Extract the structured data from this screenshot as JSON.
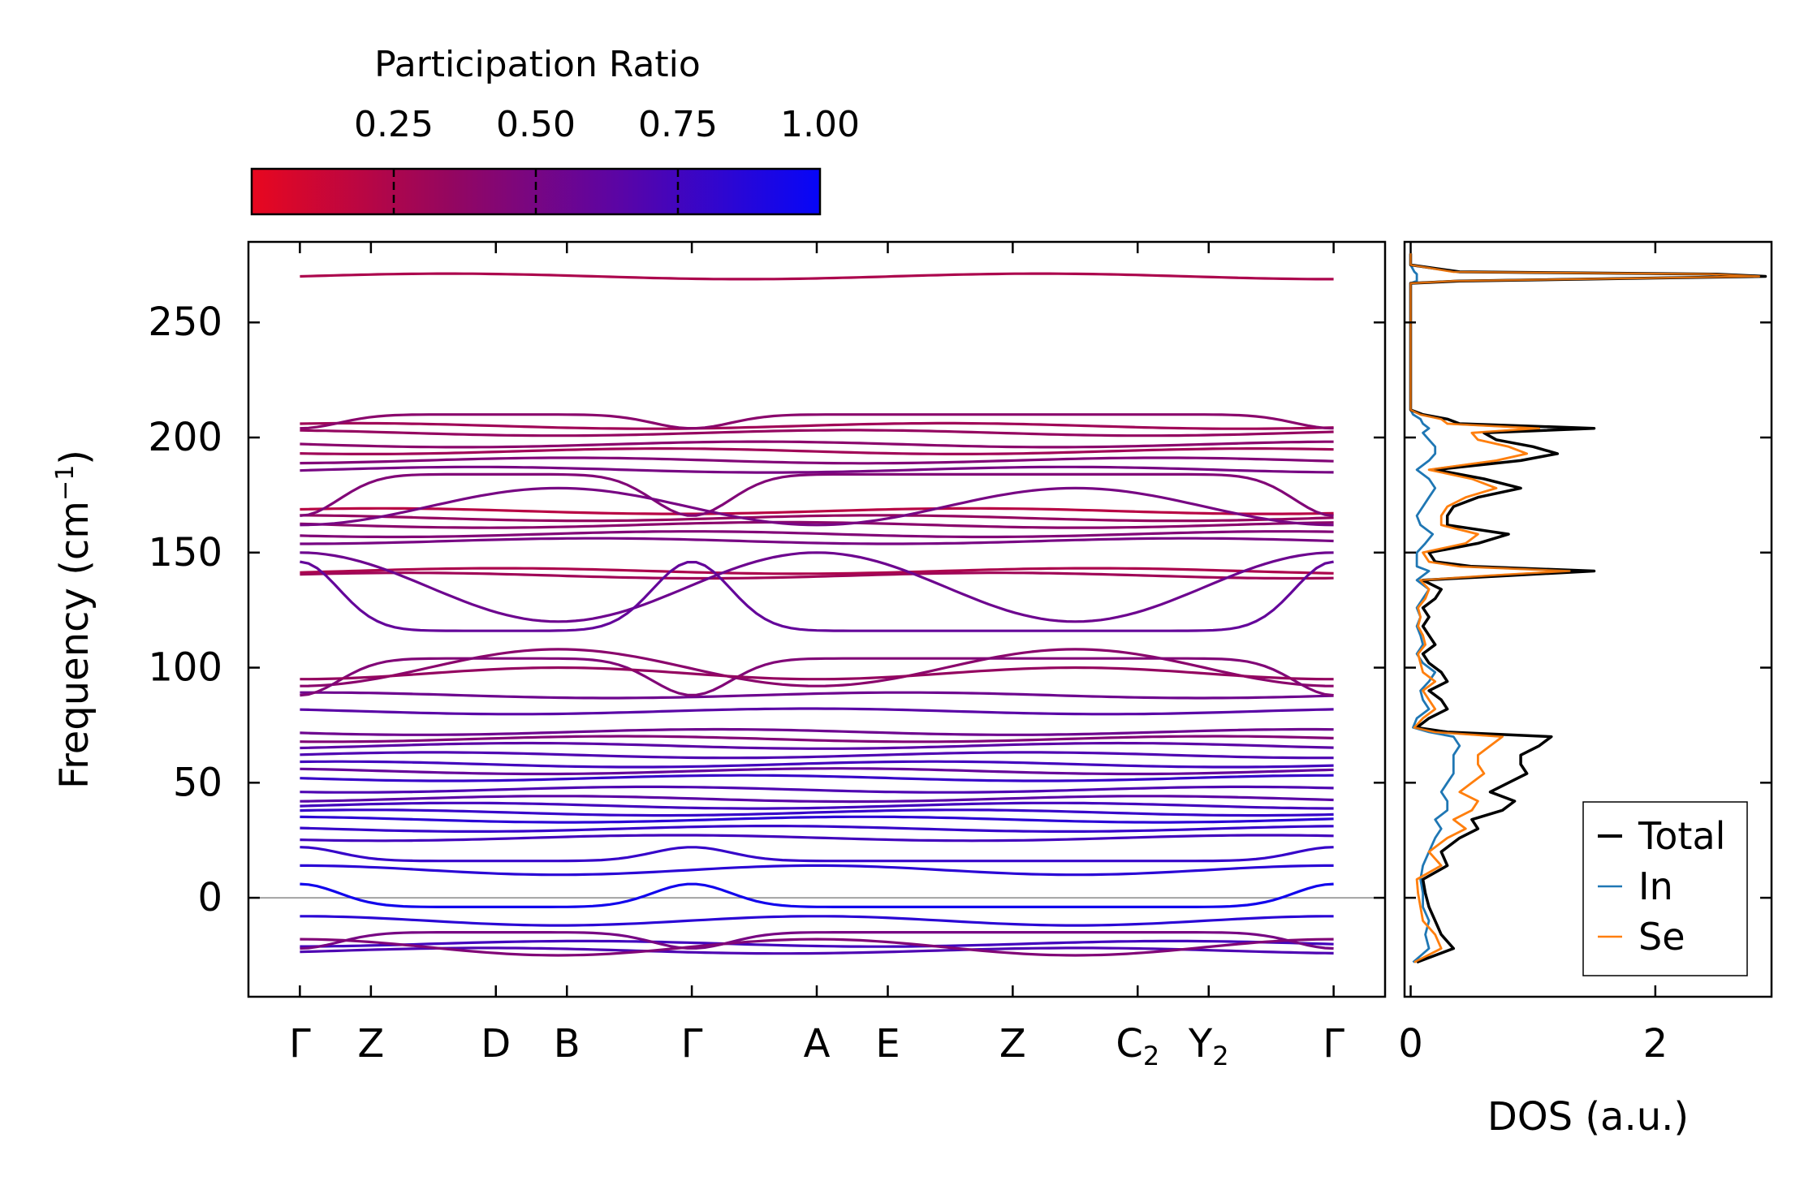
{
  "chart_data": [
    {
      "type": "line",
      "kind": "phonon-band-structure",
      "ylabel": "Frequency (cm",
      "ylabel_sup": "−1",
      "ylabel_close": ")",
      "ylim": [
        -43,
        285
      ],
      "yticks": [
        "250",
        "200",
        "150",
        "100",
        "50",
        "0"
      ],
      "ytick_values": [
        250,
        200,
        150,
        100,
        50,
        0
      ],
      "xticks": [
        {
          "label": "Γ",
          "x": 0
        },
        {
          "label": "Z",
          "x": 0.58
        },
        {
          "label": "D",
          "x": 1.6
        },
        {
          "label": "B",
          "x": 2.18
        },
        {
          "label": "Γ",
          "x": 3.2
        },
        {
          "label": "A",
          "x": 4.22
        },
        {
          "label": "E",
          "x": 4.8
        },
        {
          "label": "Z",
          "x": 5.82
        },
        {
          "label": "C",
          "sub": "2",
          "x": 6.84
        },
        {
          "label": "Y",
          "sub": "2",
          "x": 7.42
        },
        {
          "label": "Γ",
          "x": 8.44
        }
      ],
      "xlim": [
        -0.42,
        8.86
      ],
      "colorbar": {
        "title": "Participation Ratio",
        "ticks": [
          "0.25",
          "0.50",
          "0.75",
          "1.00"
        ],
        "tick_values": [
          0.25,
          0.5,
          0.75,
          1.0
        ],
        "range": [
          0.0,
          1.0
        ],
        "colors": [
          "#e8071f",
          "#940660",
          "#5a05a6",
          "#0606f8"
        ]
      },
      "flat_bands": [
        {
          "y": 270,
          "pr": 0.25
        },
        {
          "y": 205,
          "pr": 0.3
        },
        {
          "y": 202,
          "pr": 0.35
        },
        {
          "y": 197,
          "pr": 0.4
        },
        {
          "y": 194,
          "pr": 0.3
        },
        {
          "y": 190,
          "pr": 0.45
        },
        {
          "y": 186,
          "pr": 0.5
        },
        {
          "y": 168,
          "pr": 0.2
        },
        {
          "y": 165,
          "pr": 0.35
        },
        {
          "y": 162,
          "pr": 0.4
        },
        {
          "y": 158,
          "pr": 0.45
        },
        {
          "y": 155,
          "pr": 0.5
        },
        {
          "y": 142,
          "pr": 0.25
        },
        {
          "y": 140,
          "pr": 0.3
        },
        {
          "y": 88,
          "pr": 0.55
        },
        {
          "y": 81,
          "pr": 0.65
        },
        {
          "y": 72,
          "pr": 0.55
        },
        {
          "y": 69,
          "pr": 0.45
        },
        {
          "y": 66,
          "pr": 0.65
        },
        {
          "y": 62,
          "pr": 0.7
        },
        {
          "y": 58,
          "pr": 0.75
        },
        {
          "y": 55,
          "pr": 0.6
        },
        {
          "y": 52,
          "pr": 0.8
        },
        {
          "y": 47,
          "pr": 0.7
        },
        {
          "y": 43,
          "pr": 0.65
        },
        {
          "y": 40,
          "pr": 0.75
        },
        {
          "y": 37,
          "pr": 0.8
        },
        {
          "y": 34,
          "pr": 0.85
        },
        {
          "y": 30,
          "pr": 0.8
        },
        {
          "y": 26,
          "pr": 0.75
        },
        {
          "y": -20,
          "pr": 0.75
        },
        {
          "y": -23,
          "pr": 0.7
        }
      ],
      "modulated_bands": [
        {
          "a": 184,
          "b": 166,
          "pr": 0.45
        },
        {
          "a": 178,
          "b": 162,
          "pr": 0.5
        },
        {
          "a": 210,
          "b": 204,
          "pr": 0.4
        },
        {
          "a": 120,
          "b": 150,
          "pr": 0.55
        },
        {
          "a": 116,
          "b": 146,
          "pr": 0.6
        },
        {
          "a": 108,
          "b": 92,
          "pr": 0.4
        },
        {
          "a": 104,
          "b": 88,
          "pr": 0.45
        },
        {
          "a": 100,
          "b": 95,
          "pr": 0.35
        },
        {
          "a": 16,
          "b": 22,
          "pr": 0.8
        },
        {
          "a": 10,
          "b": 14,
          "pr": 0.85
        },
        {
          "a": -4,
          "b": 6,
          "pr": 0.95
        },
        {
          "a": -12,
          "b": -8,
          "pr": 0.85
        },
        {
          "a": -15,
          "b": -22,
          "pr": 0.5
        },
        {
          "a": -25,
          "b": -18,
          "pr": 0.45
        }
      ],
      "zero_line": 0
    },
    {
      "type": "line",
      "kind": "density-of-states",
      "xlabel": "DOS (a.u.)",
      "xlim": [
        -0.05,
        2.95
      ],
      "xticks": [
        "0",
        "2"
      ],
      "xtick_values": [
        0,
        2
      ],
      "ylim": [
        -43,
        285
      ],
      "legend_position": "bottom-right",
      "series": [
        {
          "name": "Total",
          "color": "#000000"
        },
        {
          "name": "In",
          "color": "#1f77b4"
        },
        {
          "name": "Se",
          "color": "#ff7f0e"
        }
      ],
      "freq": [
        -28,
        -22,
        -16,
        -10,
        -4,
        2,
        8,
        14,
        20,
        26,
        30,
        34,
        38,
        42,
        46,
        50,
        54,
        58,
        62,
        66,
        70,
        72,
        74,
        78,
        82,
        86,
        90,
        94,
        98,
        102,
        106,
        110,
        114,
        118,
        122,
        126,
        130,
        134,
        138,
        140,
        142,
        144,
        146,
        150,
        154,
        158,
        162,
        166,
        170,
        174,
        178,
        182,
        186,
        190,
        193,
        196,
        199,
        202,
        204,
        206,
        208,
        210,
        212,
        220,
        240,
        260,
        267,
        268,
        270,
        271,
        272,
        275,
        280
      ],
      "total": [
        0.05,
        0.35,
        0.25,
        0.2,
        0.15,
        0.12,
        0.1,
        0.3,
        0.25,
        0.4,
        0.55,
        0.5,
        0.75,
        0.85,
        0.65,
        0.8,
        0.95,
        0.9,
        0.9,
        1.05,
        1.15,
        0.3,
        0.05,
        0.15,
        0.3,
        0.25,
        0.15,
        0.3,
        0.25,
        0.15,
        0.1,
        0.2,
        0.15,
        0.1,
        0.15,
        0.1,
        0.2,
        0.25,
        0.1,
        0.8,
        1.5,
        0.5,
        0.2,
        0.15,
        0.55,
        0.8,
        0.3,
        0.3,
        0.35,
        0.55,
        0.9,
        0.6,
        0.2,
        0.9,
        1.2,
        1.0,
        0.7,
        0.6,
        1.5,
        0.4,
        0.3,
        0.1,
        0.0,
        0.0,
        0.0,
        0.0,
        0.0,
        0.4,
        2.9,
        2.5,
        0.4,
        0.0,
        0.0
      ],
      "In": [
        0.02,
        0.15,
        0.12,
        0.15,
        0.1,
        0.1,
        0.08,
        0.1,
        0.15,
        0.2,
        0.25,
        0.2,
        0.3,
        0.3,
        0.25,
        0.3,
        0.35,
        0.35,
        0.35,
        0.4,
        0.35,
        0.15,
        0.02,
        0.05,
        0.15,
        0.1,
        0.08,
        0.15,
        0.2,
        0.1,
        0.05,
        0.1,
        0.08,
        0.05,
        0.08,
        0.05,
        0.1,
        0.15,
        0.05,
        0.1,
        0.15,
        0.05,
        0.05,
        0.05,
        0.12,
        0.18,
        0.08,
        0.05,
        0.1,
        0.15,
        0.2,
        0.15,
        0.05,
        0.15,
        0.2,
        0.2,
        0.15,
        0.1,
        0.15,
        0.1,
        0.08,
        0.02,
        0.0,
        0.0,
        0.0,
        0.0,
        0.0,
        0.05,
        0.05,
        0.05,
        0.03,
        0.0,
        0.0
      ],
      "Se": [
        0.03,
        0.25,
        0.2,
        0.1,
        0.08,
        0.06,
        0.05,
        0.25,
        0.15,
        0.3,
        0.45,
        0.35,
        0.5,
        0.55,
        0.4,
        0.5,
        0.6,
        0.55,
        0.55,
        0.65,
        0.75,
        0.2,
        0.03,
        0.1,
        0.2,
        0.15,
        0.1,
        0.2,
        0.1,
        0.08,
        0.06,
        0.12,
        0.1,
        0.06,
        0.08,
        0.06,
        0.12,
        0.15,
        0.08,
        0.65,
        1.3,
        0.4,
        0.15,
        0.1,
        0.45,
        0.55,
        0.25,
        0.25,
        0.3,
        0.45,
        0.7,
        0.5,
        0.15,
        0.7,
        0.95,
        0.8,
        0.55,
        0.5,
        1.05,
        0.3,
        0.25,
        0.08,
        0.0,
        0.0,
        0.0,
        0.0,
        0.0,
        0.35,
        2.85,
        2.45,
        0.35,
        0.0,
        0.0
      ]
    }
  ]
}
